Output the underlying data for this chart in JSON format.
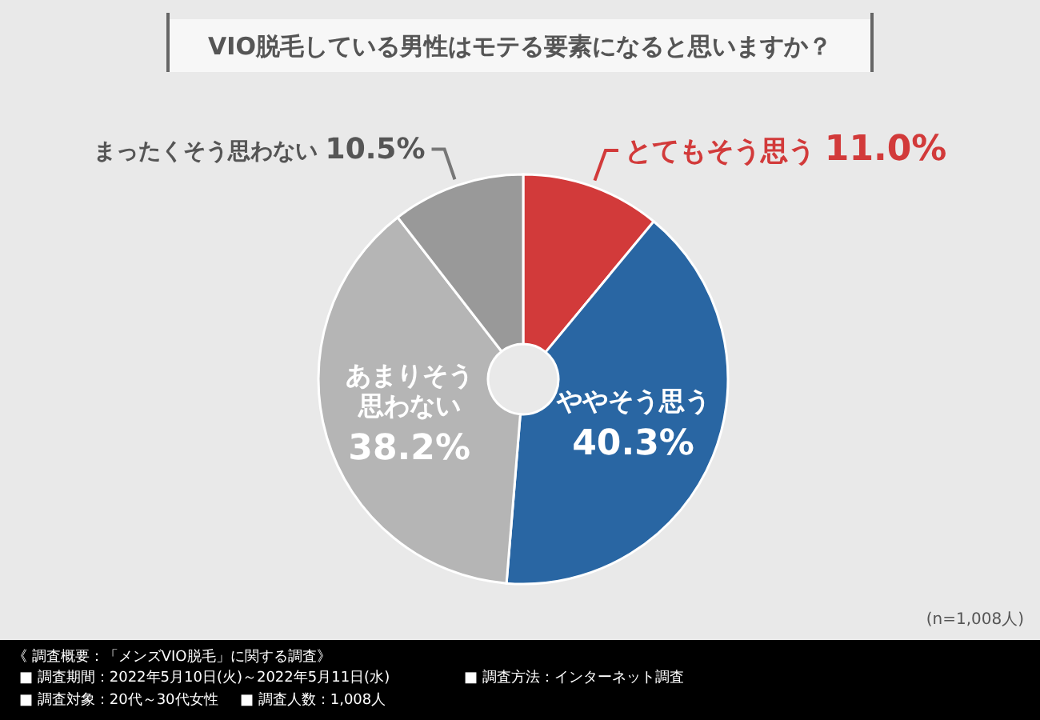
{
  "chart_data": {
    "type": "donut",
    "title": "VIO脱毛している男性はモテる要素になると思いますか？",
    "categories": [
      "とてもそう思う",
      "ややそう思う",
      "あまりそう思わない",
      "まったくそう思わない"
    ],
    "values": [
      11.0,
      40.3,
      38.2,
      10.5
    ],
    "colors": [
      "#d23a3a",
      "#2966a3",
      "#b5b5b5",
      "#999999"
    ],
    "value_labels": [
      "11.0%",
      "40.3%",
      "38.2%",
      "10.5%"
    ],
    "annotations": [
      "(n=1,008人)",
      "《 調査概要：「メンズVIO脱毛」に関する調査》",
      "■ 調査期間：2022年5月10日(火)～2022年5月11日(水)",
      "■ 調査対象：20代～30代女性",
      "■ 調査人数：1,008人",
      "■ 調査方法：インターネット調査"
    ]
  }
}
